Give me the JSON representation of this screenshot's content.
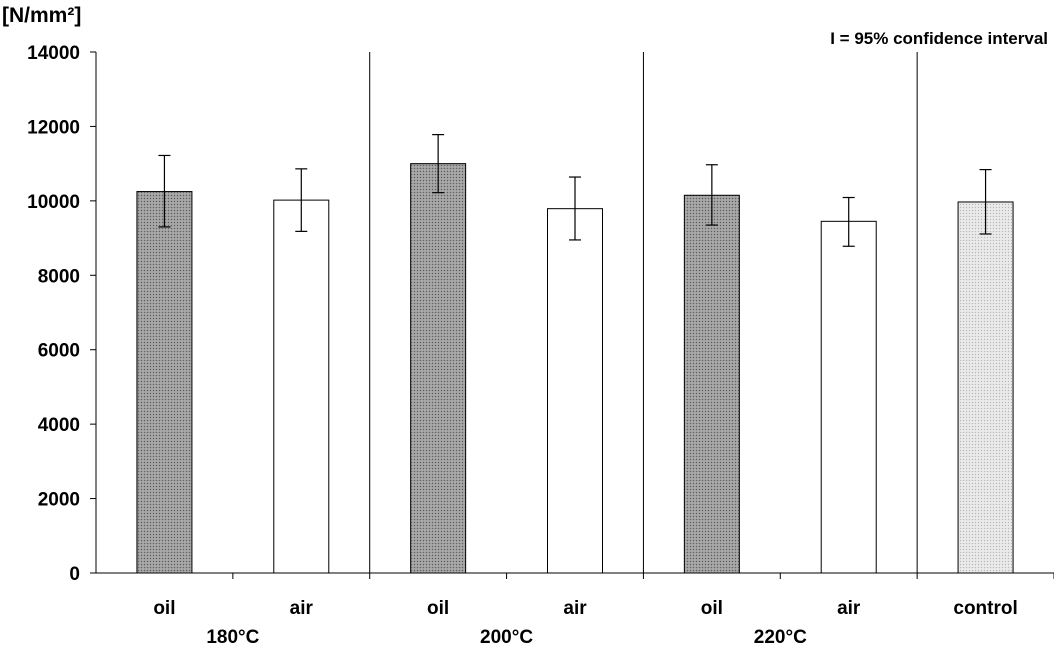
{
  "chart_data": {
    "type": "bar",
    "title": "",
    "ylabel": "[N/mm²]",
    "xlabel": "",
    "ylim": [
      0,
      14000
    ],
    "yticks": [
      "0",
      "2000",
      "4000",
      "6000",
      "8000",
      "10000",
      "12000",
      "14000"
    ],
    "yticks_values": [
      0,
      2000,
      4000,
      6000,
      8000,
      10000,
      12000,
      14000
    ],
    "legend_text": "I = 95% confidence interval",
    "legend_position": "top-right",
    "grid": false,
    "categories": [
      "oil",
      "air",
      "oil",
      "air",
      "oil",
      "air",
      "control"
    ],
    "groups": [
      {
        "label": "180°C",
        "bars": [
          0,
          1
        ]
      },
      {
        "label": "200°C",
        "bars": [
          2,
          3
        ]
      },
      {
        "label": "220°C",
        "bars": [
          4,
          5
        ]
      },
      {
        "label": "",
        "bars": [
          6
        ]
      }
    ],
    "values": [
      10250,
      10020,
      11000,
      9790,
      10150,
      9450,
      9970
    ],
    "ci_low": [
      9300,
      9180,
      10220,
      8950,
      9350,
      8780,
      9110
    ],
    "ci_high": [
      11220,
      10860,
      11780,
      10640,
      10970,
      10090,
      10840
    ],
    "bar_fills": [
      "#a6a6a6",
      "#ffffff",
      "#a6a6a6",
      "#ffffff",
      "#a6a6a6",
      "#ffffff",
      "#e0e0e0"
    ]
  }
}
